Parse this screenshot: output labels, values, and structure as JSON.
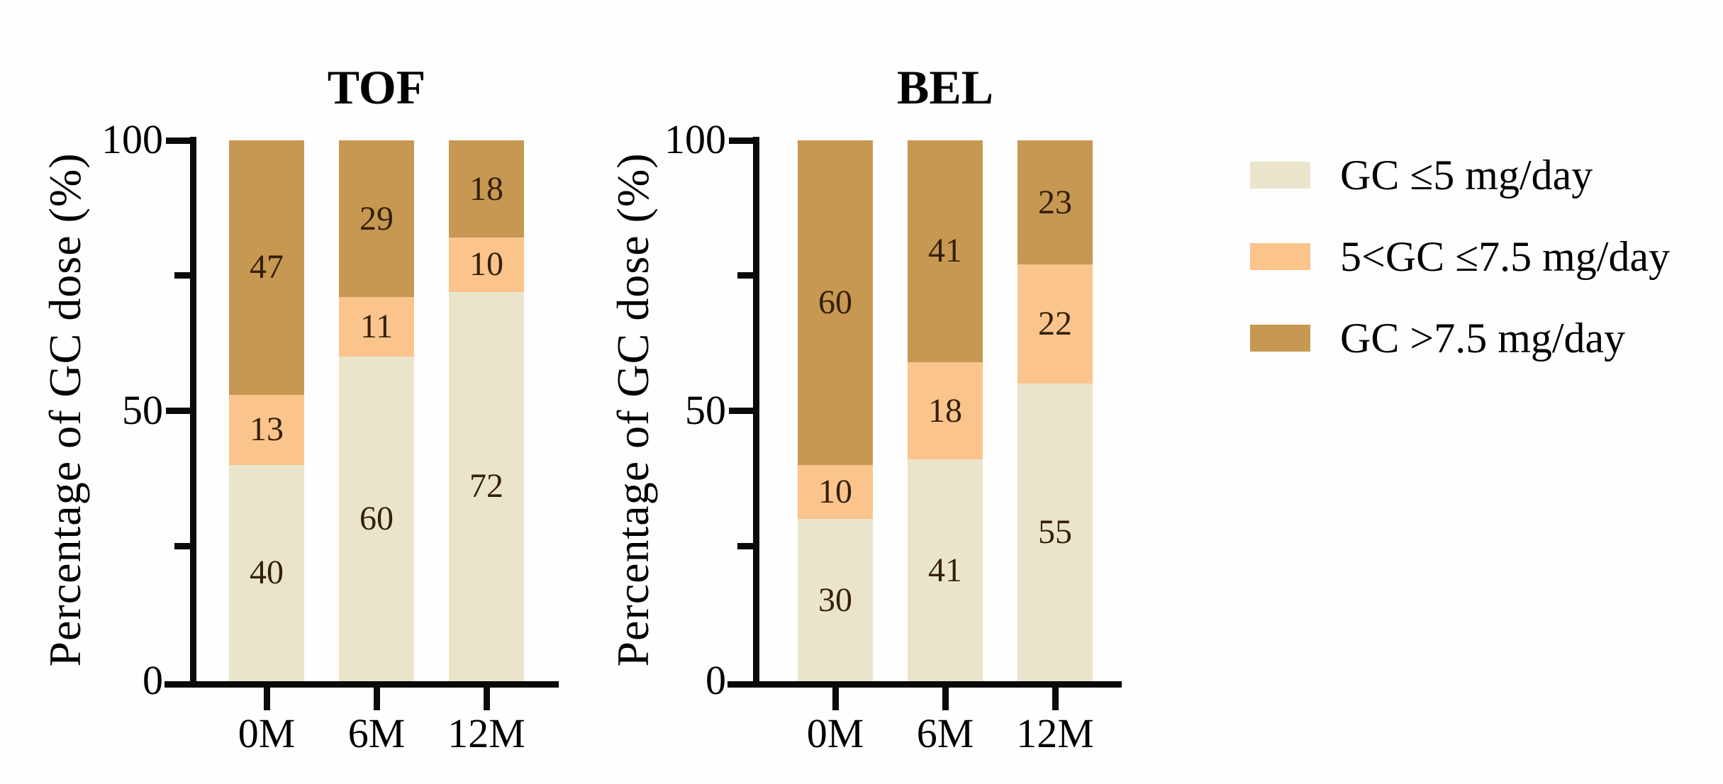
{
  "figure": {
    "background": "#fefefe",
    "axis_color": "#0a0a0a",
    "value_label_color": "#342008"
  },
  "legend": {
    "position": "right",
    "items": [
      {
        "label": "GC ≤5 mg/day",
        "color": "#EAE5CA"
      },
      {
        "label": "5<GC ≤7.5 mg/day",
        "color": "#FAC48C"
      },
      {
        "label": "GC >7.5 mg/day",
        "color": "#C69852"
      }
    ]
  },
  "chart_data": [
    {
      "type": "bar",
      "stacked": true,
      "title": "TOF",
      "categories": [
        "0M",
        "6M",
        "12M"
      ],
      "series": [
        {
          "name": "GC ≤5 mg/day",
          "color": "#EAE5CA",
          "values": [
            40,
            60,
            72
          ]
        },
        {
          "name": "5<GC ≤7.5 mg/day",
          "color": "#FAC48C",
          "values": [
            13,
            11,
            10
          ]
        },
        {
          "name": "GC >7.5 mg/day",
          "color": "#C69852",
          "values": [
            47,
            29,
            18
          ]
        }
      ],
      "xlabel": "",
      "ylabel": "Percentage of GC dose (%)",
      "ylim": [
        0,
        100
      ],
      "yticks": {
        "labeled": [
          0,
          50,
          100
        ],
        "minor": [
          25,
          75
        ]
      },
      "grid": false
    },
    {
      "type": "bar",
      "stacked": true,
      "title": "BEL",
      "categories": [
        "0M",
        "6M",
        "12M"
      ],
      "series": [
        {
          "name": "GC ≤5 mg/day",
          "color": "#EAE5CA",
          "values": [
            30,
            41,
            55
          ]
        },
        {
          "name": "5<GC ≤7.5 mg/day",
          "color": "#FAC48C",
          "values": [
            10,
            18,
            22
          ]
        },
        {
          "name": "GC >7.5 mg/day",
          "color": "#C69852",
          "values": [
            60,
            41,
            23
          ]
        }
      ],
      "xlabel": "",
      "ylabel": "Percentage of GC dose (%)",
      "ylim": [
        0,
        100
      ],
      "yticks": {
        "labeled": [
          0,
          50,
          100
        ],
        "minor": [
          25,
          75
        ]
      },
      "grid": false
    }
  ]
}
